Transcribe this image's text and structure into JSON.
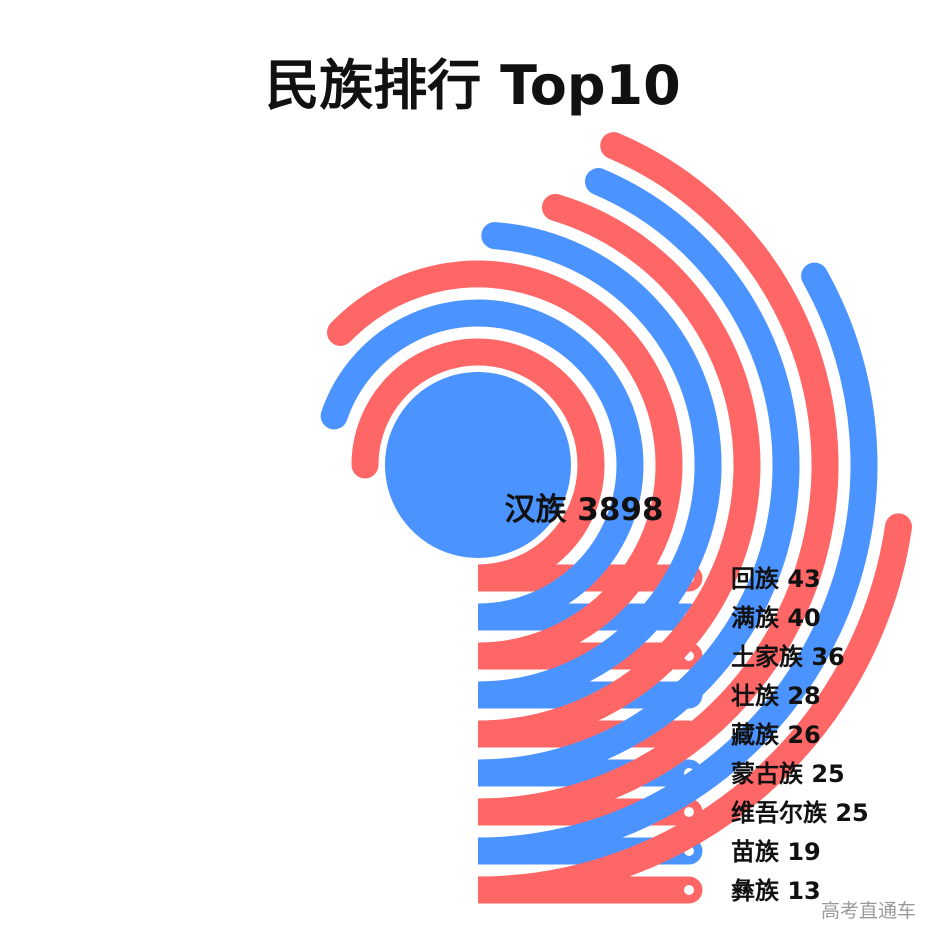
{
  "chart_data": {
    "type": "radial-bar",
    "title": "民族排行 Top10",
    "center": {
      "name": "汉族",
      "value": 3898,
      "color": "#4b93ff"
    },
    "categories": [
      "回族",
      "满族",
      "土家族",
      "壮族",
      "藏族",
      "蒙古族",
      "维吾尔族",
      "苗族",
      "彝族"
    ],
    "values": [
      43,
      40,
      36,
      28,
      26,
      25,
      25,
      19,
      13
    ],
    "colors": [
      "#ff6666",
      "#4b93ff",
      "#ff6666",
      "#4b93ff",
      "#ff6666",
      "#4b93ff",
      "#ff6666",
      "#4b93ff",
      "#ff6666"
    ]
  },
  "watermark": "高考直通车"
}
